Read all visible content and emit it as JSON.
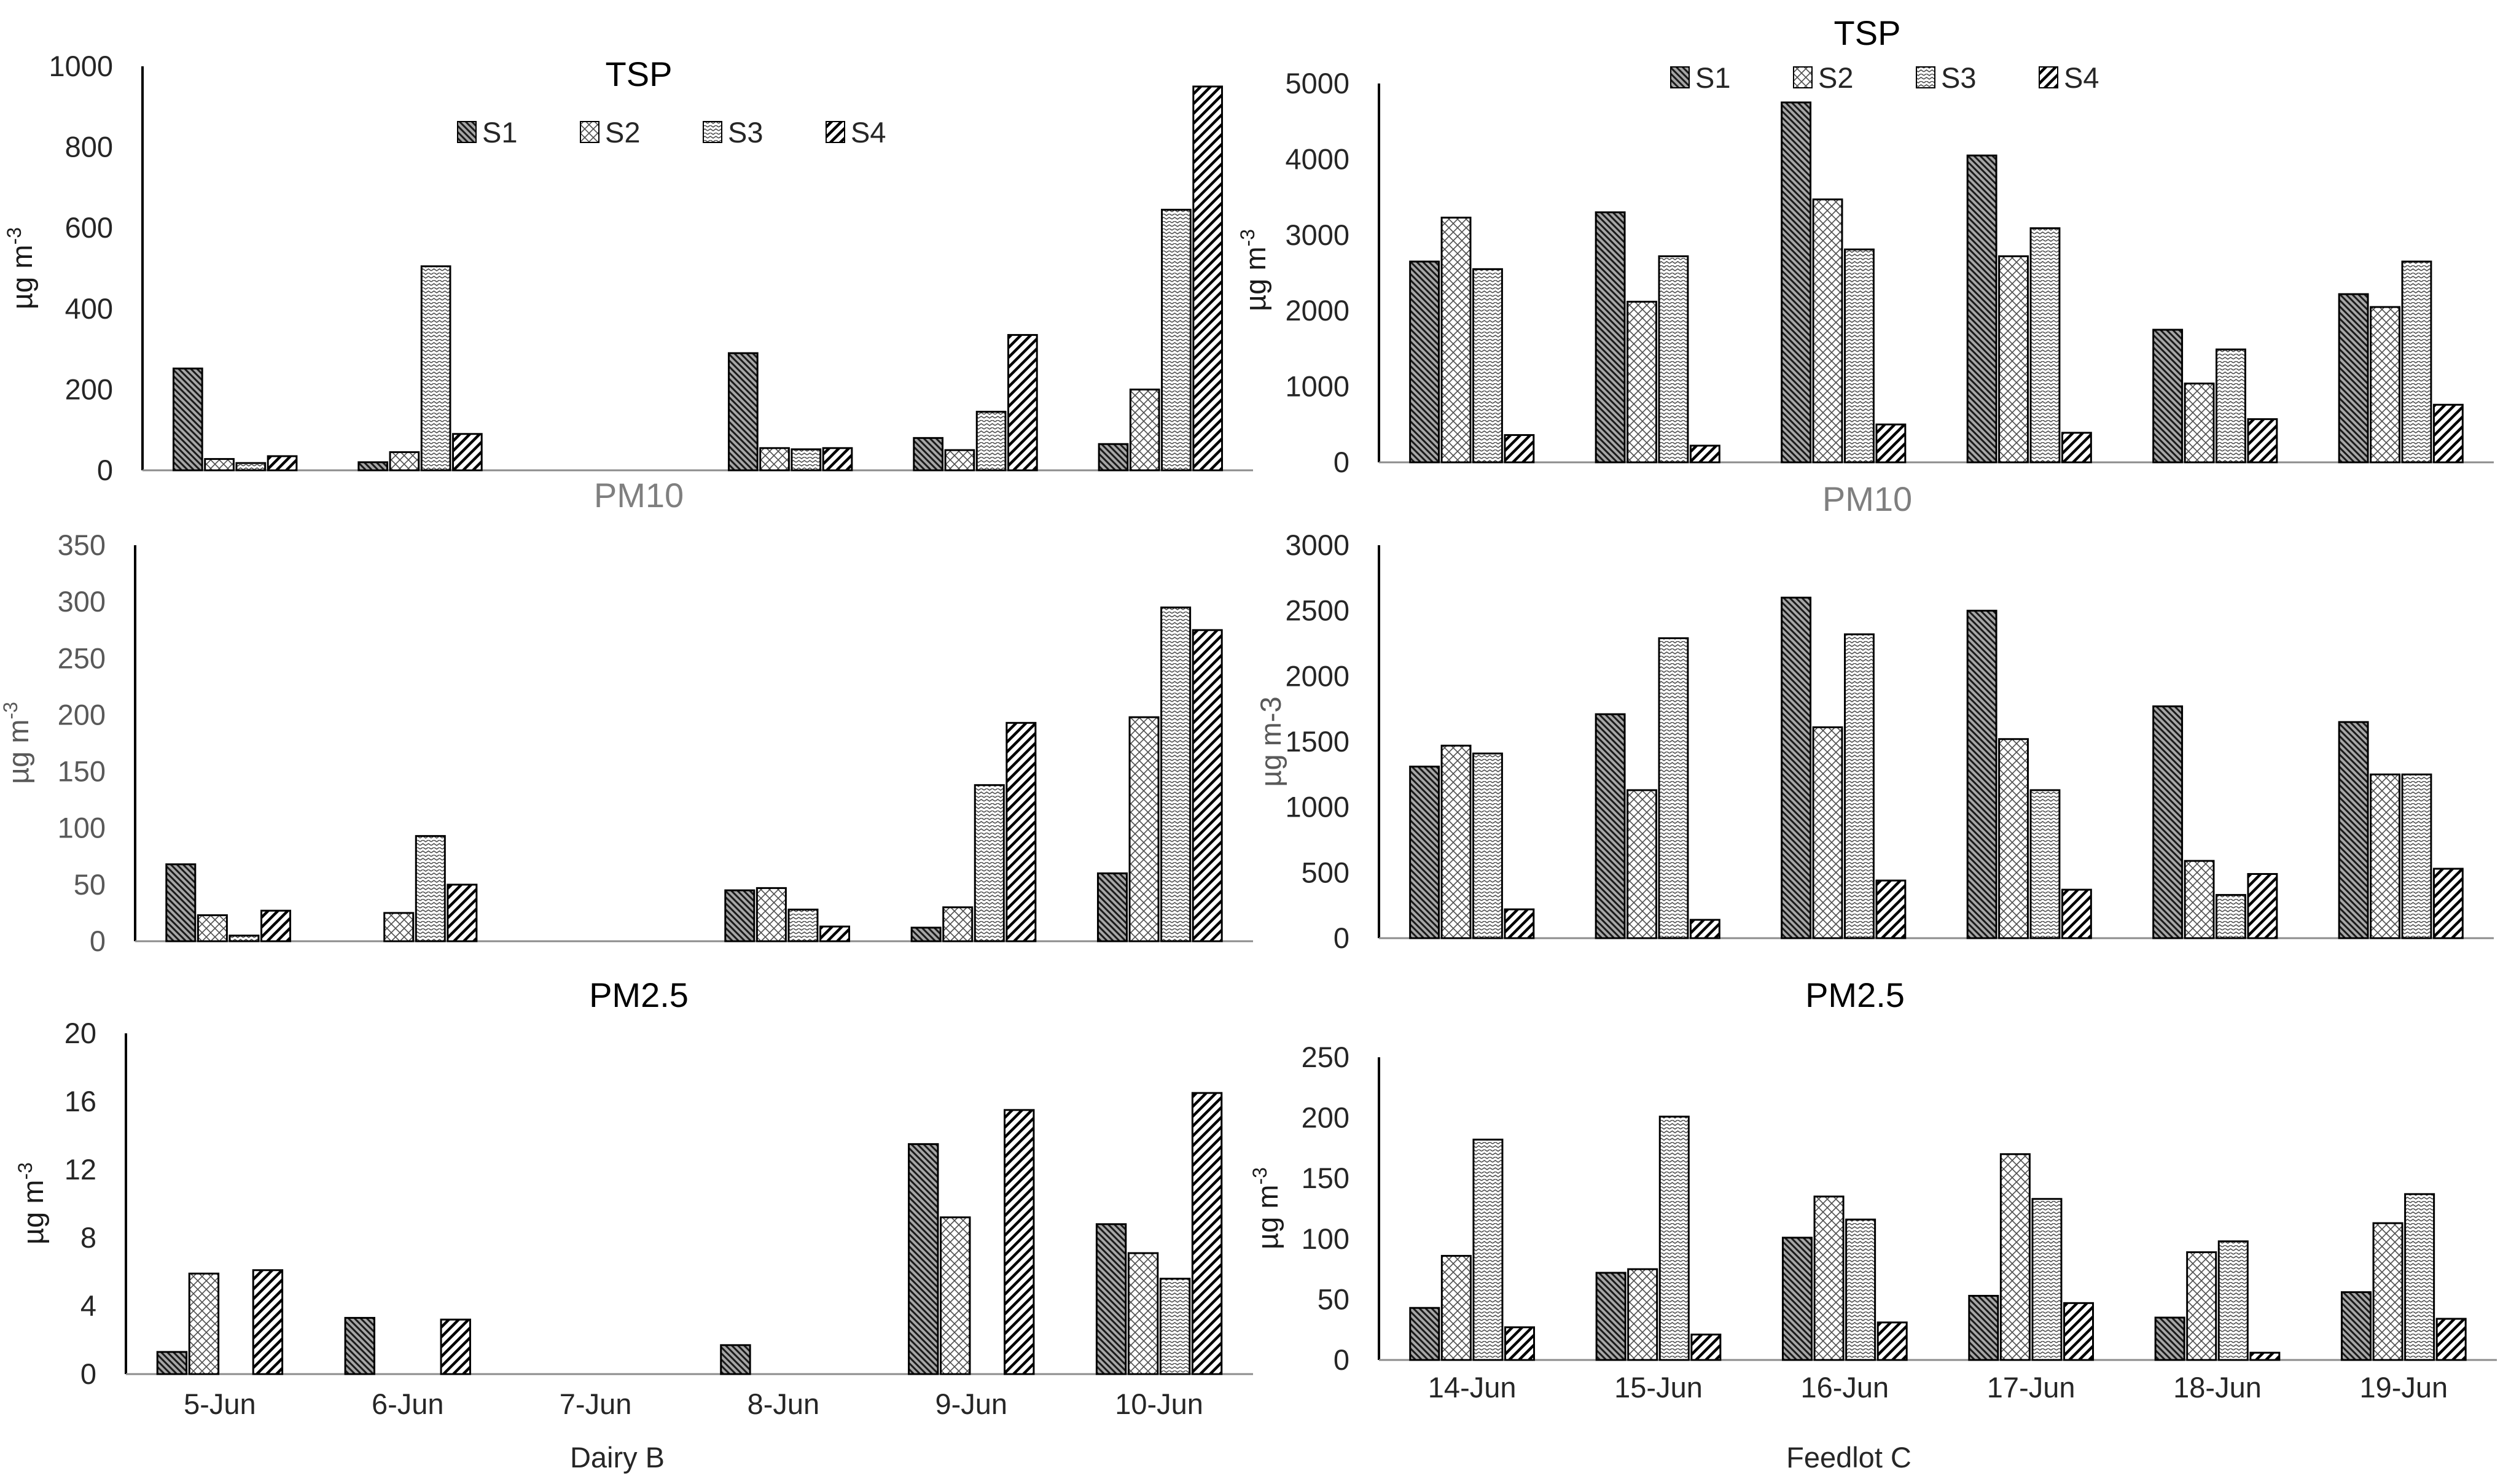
{
  "legend": {
    "labels": [
      "S1",
      "S2",
      "S3",
      "S4"
    ]
  },
  "chart_data": [
    {
      "id": "dairy-tsp",
      "type": "bar",
      "title": "TSP",
      "title_color": "#000000",
      "ylabel": "µg m",
      "ylabel_sup": "-3",
      "ylim": [
        0,
        1000
      ],
      "yticks": [
        "0",
        "200",
        "400",
        "600",
        "800",
        "1000"
      ],
      "categories": [
        "5-Jun",
        "6-Jun",
        "7-Jun",
        "8-Jun",
        "9-Jun",
        "10-Jun"
      ],
      "show_legend": true,
      "show_xtick_labels": false,
      "xlabel": "",
      "series": [
        {
          "name": "S1",
          "values": [
            252,
            20,
            0,
            290,
            80,
            65
          ]
        },
        {
          "name": "S2",
          "values": [
            28,
            45,
            0,
            55,
            50,
            200
          ]
        },
        {
          "name": "S3",
          "values": [
            18,
            505,
            0,
            52,
            145,
            645
          ]
        },
        {
          "name": "S4",
          "values": [
            35,
            90,
            0,
            55,
            335,
            950
          ]
        }
      ]
    },
    {
      "id": "feedlot-tsp",
      "type": "bar",
      "title": "TSP",
      "title_color": "#000000",
      "ylabel": "µg m",
      "ylabel_sup": "-3",
      "ylim": [
        0,
        5000
      ],
      "yticks": [
        "0",
        "1000",
        "2000",
        "3000",
        "4000",
        "5000"
      ],
      "categories": [
        "14-Jun",
        "15-Jun",
        "16-Jun",
        "17-Jun",
        "18-Jun",
        "19-Jun"
      ],
      "show_legend": true,
      "show_xtick_labels": false,
      "xlabel": "",
      "series": [
        {
          "name": "S1",
          "values": [
            2650,
            3300,
            4750,
            4050,
            1750,
            2220
          ]
        },
        {
          "name": "S2",
          "values": [
            3230,
            2120,
            3470,
            2720,
            1040,
            2050
          ]
        },
        {
          "name": "S3",
          "values": [
            2550,
            2720,
            2810,
            3090,
            1490,
            2650
          ]
        },
        {
          "name": "S4",
          "values": [
            360,
            220,
            500,
            390,
            570,
            760
          ]
        }
      ]
    },
    {
      "id": "dairy-pm10",
      "type": "bar",
      "title": "PM10",
      "title_color": "#7f7f7f",
      "ylabel": "µg m",
      "ylabel_sup": "-3",
      "ylim": [
        0,
        350
      ],
      "yticks": [
        "0",
        "50",
        "100",
        "150",
        "200",
        "250",
        "300",
        "350"
      ],
      "categories": [
        "5-Jun",
        "6-Jun",
        "7-Jun",
        "8-Jun",
        "9-Jun",
        "10-Jun"
      ],
      "show_legend": false,
      "show_xtick_labels": false,
      "xlabel": "",
      "series": [
        {
          "name": "S1",
          "values": [
            68,
            0,
            0,
            45,
            12,
            60
          ]
        },
        {
          "name": "S2",
          "values": [
            23,
            25,
            0,
            47,
            30,
            198
          ]
        },
        {
          "name": "S3",
          "values": [
            5,
            93,
            0,
            28,
            138,
            295
          ]
        },
        {
          "name": "S4",
          "values": [
            27,
            50,
            0,
            13,
            193,
            275
          ]
        }
      ]
    },
    {
      "id": "feedlot-pm10",
      "type": "bar",
      "title": "PM10",
      "title_color": "#7f7f7f",
      "ylabel": "µg m-3",
      "ylabel_sup": "",
      "ylim": [
        0,
        3000
      ],
      "yticks": [
        "0",
        "500",
        "1000",
        "1500",
        "2000",
        "2500",
        "3000"
      ],
      "categories": [
        "14-Jun",
        "15-Jun",
        "16-Jun",
        "17-Jun",
        "18-Jun",
        "19-Jun"
      ],
      "show_legend": false,
      "show_xtick_labels": false,
      "xlabel": "",
      "series": [
        {
          "name": "S1",
          "values": [
            1310,
            1710,
            2600,
            2500,
            1770,
            1650
          ]
        },
        {
          "name": "S2",
          "values": [
            1470,
            1130,
            1610,
            1520,
            590,
            1250
          ]
        },
        {
          "name": "S3",
          "values": [
            1410,
            2290,
            2320,
            1130,
            330,
            1250
          ]
        },
        {
          "name": "S4",
          "values": [
            220,
            140,
            440,
            370,
            490,
            530
          ]
        }
      ]
    },
    {
      "id": "dairy-pm25",
      "type": "bar",
      "title": "PM2.5",
      "title_color": "#000000",
      "ylabel": "µg m",
      "ylabel_sup": "-3",
      "ylim": [
        0,
        20
      ],
      "yticks": [
        "0",
        "4",
        "8",
        "12",
        "16",
        "20"
      ],
      "categories": [
        "5-Jun",
        "6-Jun",
        "7-Jun",
        "8-Jun",
        "9-Jun",
        "10-Jun"
      ],
      "show_legend": false,
      "show_xtick_labels": true,
      "xlabel": "Dairy B",
      "series": [
        {
          "name": "S1",
          "values": [
            1.3,
            3.3,
            0,
            1.7,
            13.5,
            8.8
          ]
        },
        {
          "name": "S2",
          "values": [
            5.9,
            0,
            0,
            0,
            9.2,
            7.1
          ]
        },
        {
          "name": "S3",
          "values": [
            0,
            0,
            0,
            0,
            0,
            5.6
          ]
        },
        {
          "name": "S4",
          "values": [
            6.1,
            3.2,
            0,
            0,
            15.5,
            16.5
          ]
        }
      ]
    },
    {
      "id": "feedlot-pm25",
      "type": "bar",
      "title": "PM2.5",
      "title_color": "#000000",
      "ylabel": "µg m",
      "ylabel_sup": "-3",
      "ylim": [
        0,
        250
      ],
      "yticks": [
        "0",
        "50",
        "100",
        "150",
        "200",
        "250"
      ],
      "categories": [
        "14-Jun",
        "15-Jun",
        "16-Jun",
        "17-Jun",
        "18-Jun",
        "19-Jun"
      ],
      "show_legend": false,
      "show_xtick_labels": true,
      "xlabel": "Feedlot C",
      "series": [
        {
          "name": "S1",
          "values": [
            43,
            72,
            101,
            53,
            35,
            56
          ]
        },
        {
          "name": "S2",
          "values": [
            86,
            75,
            135,
            170,
            89,
            113
          ]
        },
        {
          "name": "S3",
          "values": [
            182,
            201,
            116,
            133,
            98,
            137
          ]
        },
        {
          "name": "S4",
          "values": [
            27,
            21,
            31,
            47,
            6,
            34
          ]
        }
      ]
    }
  ]
}
